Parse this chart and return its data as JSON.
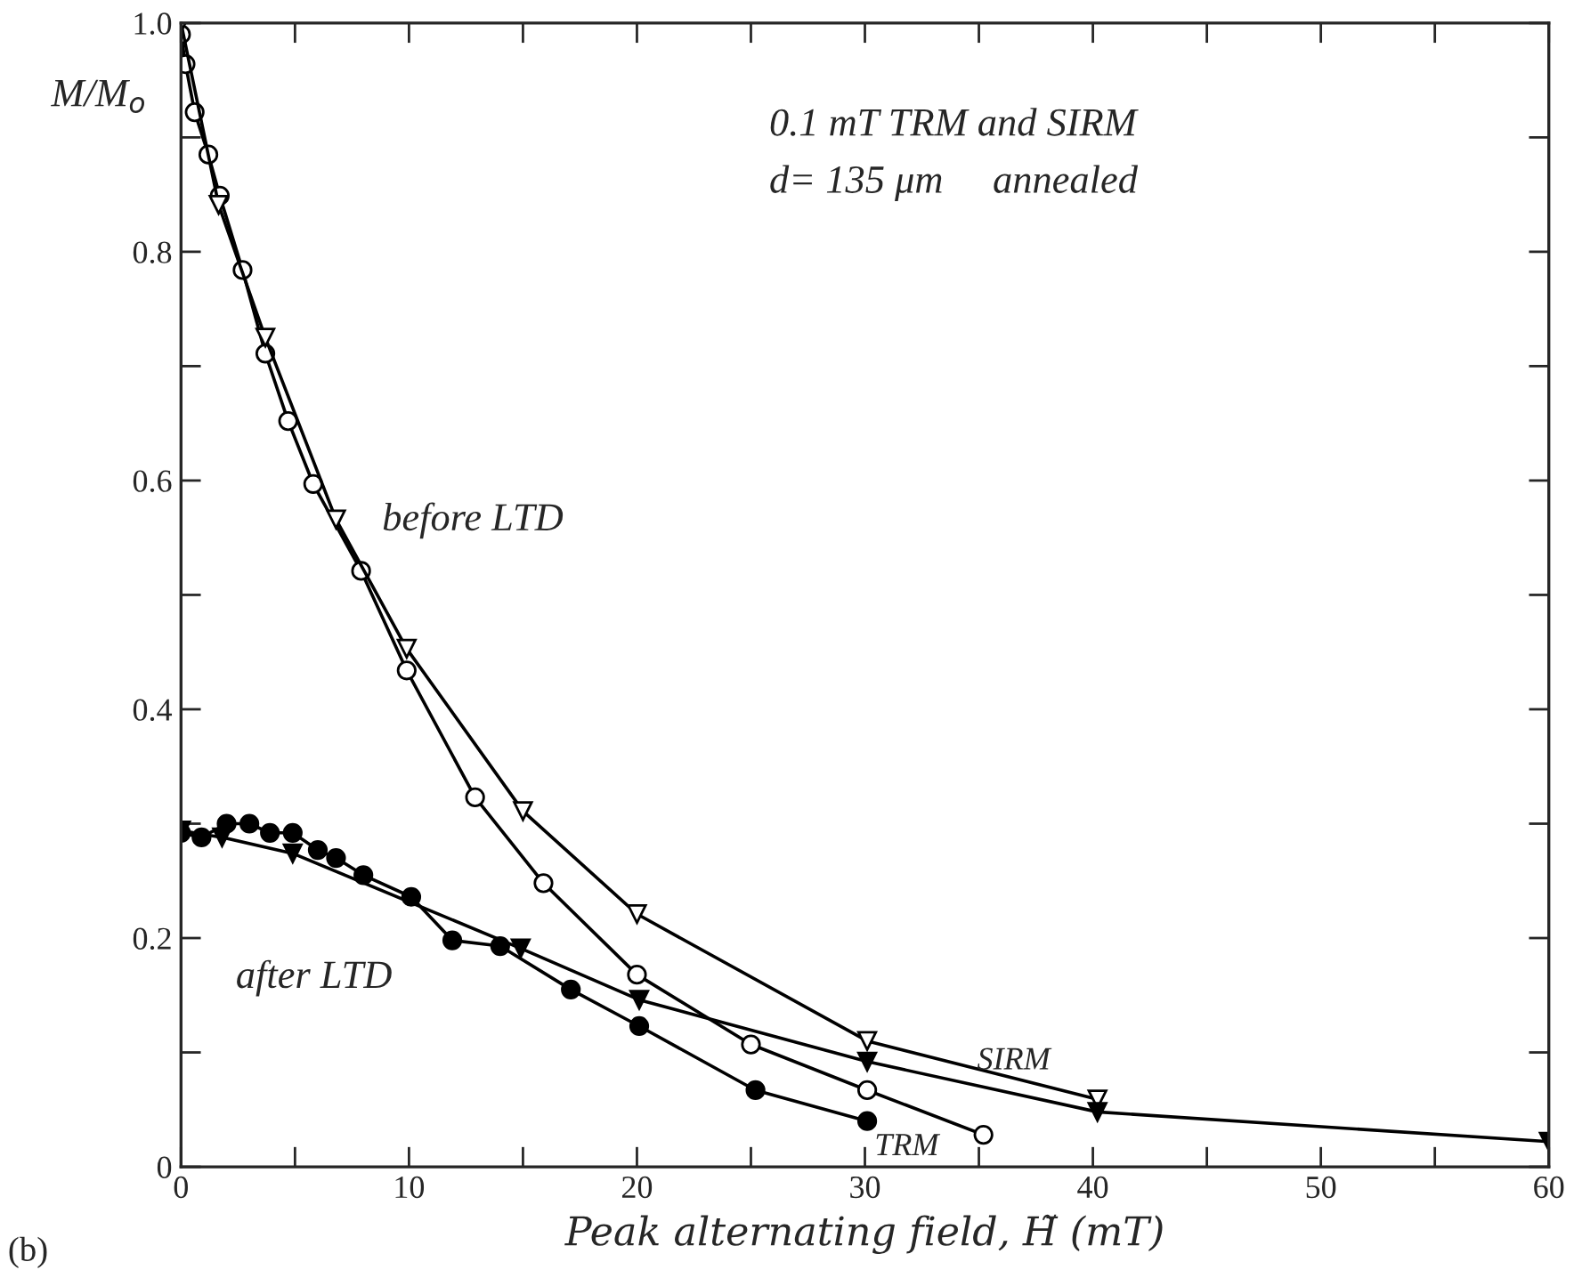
{
  "chart_data": {
    "type": "line",
    "xlabel": "Peak alternating field, H̃ (mT)",
    "ylabel": "M/M$_{o}$",
    "xlim": [
      0,
      60
    ],
    "ylim": [
      0,
      1.0
    ],
    "xticks": [
      0,
      {
        "value": 5,
        "label": null
      },
      10,
      {
        "value": 15,
        "label": null
      },
      20,
      {
        "value": 25,
        "label": null
      },
      30,
      {
        "value": 35,
        "label": null
      },
      40,
      {
        "value": 45,
        "label": null
      },
      50,
      {
        "value": 55,
        "label": null
      },
      60
    ],
    "yticks": [
      0,
      {
        "value": 0.1,
        "label": null
      },
      0.2,
      {
        "value": 0.3,
        "label": null
      },
      0.4,
      {
        "value": 0.5,
        "label": null
      },
      0.6,
      {
        "value": 0.7,
        "label": null
      },
      0.8,
      {
        "value": 0.9,
        "label": null
      },
      {
        "value": 1.0,
        "label": "1.0"
      }
    ],
    "grid": false,
    "legend": false,
    "line_style": "solid",
    "series": [
      {
        "color": "#ffffff",
        "marker": "circle",
        "x": [
          0,
          0.2,
          0.6,
          1.2,
          1.7,
          2.7,
          3.7,
          4.7,
          5.8,
          7.9,
          9.9,
          12.9,
          15.9,
          20,
          25,
          30.1,
          35.2
        ],
        "values": [
          0.99,
          0.964,
          0.922,
          0.885,
          0.849,
          0.784,
          0.711,
          0.652,
          0.597,
          0.521,
          0.434,
          0.323,
          0.248,
          0.168,
          0.107,
          0.067,
          0.028
        ]
      },
      {
        "color": "#ffffff",
        "marker": "triangle",
        "x": [
          0,
          1.65,
          3.7,
          6.8,
          9.9,
          15,
          20,
          30.1,
          40.2
        ],
        "values": [
          1.0,
          0.841,
          0.725,
          0.566,
          0.453,
          0.311,
          0.221,
          0.11,
          0.059
        ]
      },
      {
        "color": "#000000",
        "marker": "circle",
        "x": [
          0,
          0.9,
          2,
          3,
          3.9,
          4.9,
          6,
          6.8,
          8,
          10.1,
          11.9,
          14,
          17.1,
          20.1,
          25.2,
          30.1
        ],
        "values": [
          0.292,
          0.288,
          0.3,
          0.3,
          0.292,
          0.292,
          0.277,
          0.27,
          0.255,
          0.236,
          0.198,
          0.193,
          0.155,
          0.123,
          0.067,
          0.04
        ]
      },
      {
        "color": "#000000",
        "marker": "triangle",
        "x": [
          0,
          1.8,
          4.9,
          14.9,
          20.1,
          30.1,
          40.2,
          60
        ],
        "values": [
          0.294,
          0.288,
          0.274,
          0.191,
          0.146,
          0.092,
          0.048,
          0.022
        ]
      }
    ],
    "annotations": [
      "0.1 mT TRM and SIRM",
      "d= 135 μm     annealed",
      "(b)",
      "before LTD",
      "after LTD",
      "SIRM",
      "TRM"
    ]
  }
}
